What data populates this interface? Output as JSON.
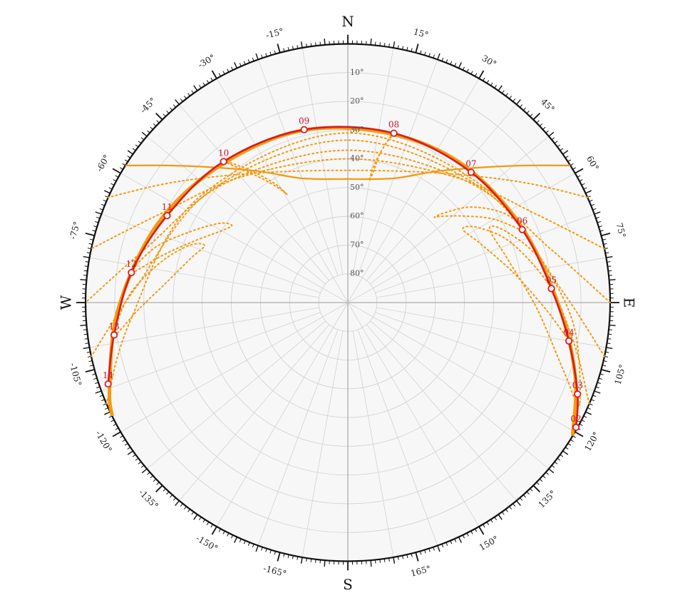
{
  "chart_data": {
    "type": "polar-sunpath",
    "cardinals": {
      "north": "N",
      "south": "S",
      "east": "E",
      "west": "W"
    },
    "azimuth_labels": [
      {
        "az": 15,
        "label": "15°"
      },
      {
        "az": 30,
        "label": "30°"
      },
      {
        "az": 45,
        "label": "45°"
      },
      {
        "az": 60,
        "label": "60°"
      },
      {
        "az": 75,
        "label": "75°"
      },
      {
        "az": 105,
        "label": "105°"
      },
      {
        "az": 120,
        "label": "120°"
      },
      {
        "az": 135,
        "label": "135°"
      },
      {
        "az": 150,
        "label": "150°"
      },
      {
        "az": 165,
        "label": "165°"
      },
      {
        "az": -15,
        "label": "-15°"
      },
      {
        "az": -30,
        "label": "-30°"
      },
      {
        "az": -45,
        "label": "-45°"
      },
      {
        "az": -60,
        "label": "-60°"
      },
      {
        "az": -75,
        "label": "-75°"
      },
      {
        "az": -105,
        "label": "-105°"
      },
      {
        "az": -120,
        "label": "-120°"
      },
      {
        "az": -135,
        "label": "-135°"
      },
      {
        "az": -150,
        "label": "-150°"
      },
      {
        "az": -165,
        "label": "-165°"
      }
    ],
    "altitude_labels": [
      {
        "alt": 10,
        "label": "10°"
      },
      {
        "alt": 20,
        "label": "20°"
      },
      {
        "alt": 30,
        "label": "30°"
      },
      {
        "alt": 40,
        "label": "40°"
      },
      {
        "alt": 50,
        "label": "50°"
      },
      {
        "alt": 60,
        "label": "60°"
      },
      {
        "alt": 70,
        "label": "70°"
      },
      {
        "alt": 80,
        "label": "80°"
      }
    ],
    "altitude_rings": [
      10,
      20,
      30,
      40,
      50,
      60,
      70,
      80
    ],
    "azimuth_grid_step": 10,
    "current_day_path": {
      "color": "#d81c1c",
      "hours": [
        {
          "label": "02",
          "az": 119,
          "alt": 0.5
        },
        {
          "label": "03",
          "az": 112,
          "alt": 5
        },
        {
          "label": "04",
          "az": 100,
          "alt": 13
        },
        {
          "label": "05",
          "az": 86,
          "alt": 20
        },
        {
          "label": "06",
          "az": 67,
          "alt": 25
        },
        {
          "label": "07",
          "az": 43,
          "alt": 28
        },
        {
          "label": "08",
          "az": 15,
          "alt": 29
        },
        {
          "label": "09",
          "az": -14,
          "alt": 28
        },
        {
          "label": "10",
          "az": -41,
          "alt": 25
        },
        {
          "label": "11",
          "az": -64,
          "alt": 21
        },
        {
          "label": "12",
          "az": -82,
          "alt": 15
        },
        {
          "label": "13",
          "az": -98,
          "alt": 9
        },
        {
          "label": "14",
          "az": -109,
          "alt": 3
        }
      ]
    },
    "solstice_paths": {
      "color": "#f29a10",
      "upper_path": [
        {
          "az": 58,
          "alt": 0
        },
        {
          "az": 50,
          "alt": 16
        },
        {
          "az": 35,
          "alt": 34
        },
        {
          "az": 20,
          "alt": 44
        },
        {
          "az": 0,
          "alt": 47
        },
        {
          "az": -20,
          "alt": 44
        },
        {
          "az": -35,
          "alt": 34
        },
        {
          "az": -50,
          "alt": 16
        },
        {
          "az": -58,
          "alt": 0
        }
      ],
      "lower_path": [
        {
          "az": 121,
          "alt": 0
        },
        {
          "az": 108,
          "alt": 8
        },
        {
          "az": 90,
          "alt": 18
        },
        {
          "az": 65,
          "alt": 25
        },
        {
          "az": 38,
          "alt": 28
        },
        {
          "az": 12,
          "alt": 29.5
        },
        {
          "az": -16,
          "alt": 28
        },
        {
          "az": -44,
          "alt": 25
        },
        {
          "az": -68,
          "alt": 19
        },
        {
          "az": -92,
          "alt": 11
        },
        {
          "az": -110,
          "alt": 3
        },
        {
          "az": -116,
          "alt": 0
        }
      ]
    },
    "monthly_paths_dotted": [
      [
        {
          "az": 66,
          "alt": 0
        },
        {
          "az": 55,
          "alt": 17
        },
        {
          "az": 35,
          "alt": 35
        },
        {
          "az": 0,
          "alt": 44
        },
        {
          "az": -35,
          "alt": 35
        },
        {
          "az": -55,
          "alt": 17
        },
        {
          "az": -66,
          "alt": 0
        }
      ],
      [
        {
          "az": 78,
          "alt": 0
        },
        {
          "az": 65,
          "alt": 18
        },
        {
          "az": 40,
          "alt": 33
        },
        {
          "az": 0,
          "alt": 40
        },
        {
          "az": -40,
          "alt": 33
        },
        {
          "az": -65,
          "alt": 18
        },
        {
          "az": -78,
          "alt": 0
        }
      ],
      [
        {
          "az": 90,
          "alt": 0
        },
        {
          "az": 75,
          "alt": 18
        },
        {
          "az": 45,
          "alt": 31
        },
        {
          "az": 0,
          "alt": 37
        },
        {
          "az": -45,
          "alt": 31
        },
        {
          "az": -75,
          "alt": 18
        },
        {
          "az": -90,
          "alt": 0
        }
      ],
      [
        {
          "az": 102,
          "alt": 0
        },
        {
          "az": 86,
          "alt": 17
        },
        {
          "az": 50,
          "alt": 29
        },
        {
          "az": 0,
          "alt": 33.5
        },
        {
          "az": -50,
          "alt": 29
        },
        {
          "az": -86,
          "alt": 17
        },
        {
          "az": -102,
          "alt": 0
        }
      ],
      [
        {
          "az": 113,
          "alt": 0
        },
        {
          "az": 95,
          "alt": 15
        },
        {
          "az": 55,
          "alt": 27
        },
        {
          "az": 0,
          "alt": 31
        },
        {
          "az": -55,
          "alt": 27
        },
        {
          "az": -95,
          "alt": 15
        },
        {
          "az": -113,
          "alt": 0
        }
      ]
    ],
    "analemmas_dotted": [
      {
        "hour": "03",
        "points": [
          {
            "az": 114,
            "alt": 3
          },
          {
            "az": 108,
            "alt": 12
          },
          {
            "az": 92,
            "alt": 25
          },
          {
            "az": 75,
            "alt": 33
          },
          {
            "az": 62,
            "alt": 35
          },
          {
            "az": 66,
            "alt": 30
          },
          {
            "az": 78,
            "alt": 22
          },
          {
            "az": 96,
            "alt": 12
          },
          {
            "az": 114,
            "alt": 3
          }
        ]
      },
      {
        "hour": "04",
        "points": [
          {
            "az": 100,
            "alt": 12
          },
          {
            "az": 92,
            "alt": 22
          },
          {
            "az": 80,
            "alt": 32
          },
          {
            "az": 66,
            "alt": 40
          },
          {
            "az": 57,
            "alt": 43
          },
          {
            "az": 60,
            "alt": 38
          },
          {
            "az": 70,
            "alt": 30
          },
          {
            "az": 86,
            "alt": 20
          },
          {
            "az": 100,
            "alt": 12
          }
        ]
      },
      {
        "hour": "06",
        "points": [
          {
            "az": 68,
            "alt": 24
          },
          {
            "az": 60,
            "alt": 32
          },
          {
            "az": 53,
            "alt": 40
          },
          {
            "az": 47,
            "alt": 46
          },
          {
            "az": 45,
            "alt": 48
          },
          {
            "az": 47,
            "alt": 44
          },
          {
            "az": 52,
            "alt": 36
          },
          {
            "az": 60,
            "alt": 28
          },
          {
            "az": 68,
            "alt": 24
          }
        ]
      },
      {
        "hour": "08",
        "points": [
          {
            "az": 15,
            "alt": 29
          },
          {
            "az": 13,
            "alt": 34
          },
          {
            "az": 11,
            "alt": 40
          },
          {
            "az": 10,
            "alt": 45
          },
          {
            "az": 10,
            "alt": 47
          },
          {
            "az": 11,
            "alt": 43
          },
          {
            "az": 12,
            "alt": 37
          },
          {
            "az": 14,
            "alt": 31
          },
          {
            "az": 15,
            "alt": 29
          }
        ]
      },
      {
        "hour": "10",
        "points": [
          {
            "az": -41,
            "alt": 25
          },
          {
            "az": -37,
            "alt": 33
          },
          {
            "az": -33,
            "alt": 40
          },
          {
            "az": -30,
            "alt": 45
          },
          {
            "az": -29,
            "alt": 47
          },
          {
            "az": -31,
            "alt": 42
          },
          {
            "az": -35,
            "alt": 35
          },
          {
            "az": -39,
            "alt": 28
          },
          {
            "az": -41,
            "alt": 25
          }
        ]
      },
      {
        "hour": "12",
        "points": [
          {
            "az": -82,
            "alt": 15
          },
          {
            "az": -75,
            "alt": 25
          },
          {
            "az": -68,
            "alt": 33
          },
          {
            "az": -60,
            "alt": 40
          },
          {
            "az": -56,
            "alt": 42
          },
          {
            "az": -58,
            "alt": 38
          },
          {
            "az": -66,
            "alt": 30
          },
          {
            "az": -74,
            "alt": 21
          },
          {
            "az": -82,
            "alt": 15
          }
        ]
      },
      {
        "hour": "13",
        "points": [
          {
            "az": -98,
            "alt": 9
          },
          {
            "az": -92,
            "alt": 18
          },
          {
            "az": -84,
            "alt": 27
          },
          {
            "az": -74,
            "alt": 34
          },
          {
            "az": -68,
            "alt": 37
          },
          {
            "az": -70,
            "alt": 32
          },
          {
            "az": -78,
            "alt": 24
          },
          {
            "az": -88,
            "alt": 15
          },
          {
            "az": -98,
            "alt": 9
          }
        ]
      }
    ]
  }
}
